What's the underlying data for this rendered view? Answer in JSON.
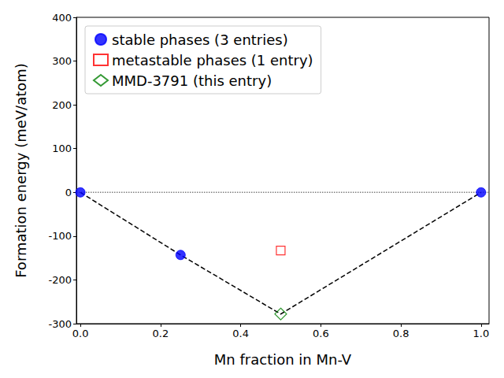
{
  "chart_data": {
    "type": "scatter",
    "x_label": "Mn fraction in Mn-V",
    "y_label": "Formation energy (meV/atom)",
    "xlim": [
      -0.01,
      1.02
    ],
    "xticks": [
      {
        "value": 0,
        "label": "0.0"
      },
      {
        "value": 0.2,
        "label": "0.2"
      },
      {
        "value": 0.4,
        "label": "0.4"
      },
      {
        "value": 0.6,
        "label": "0.6"
      },
      {
        "value": 0.8,
        "label": "0.8"
      },
      {
        "value": 1,
        "label": "1.0"
      }
    ],
    "ylim": [
      -300,
      400
    ],
    "yticks": [
      -300,
      -200,
      -100,
      0,
      100,
      200,
      300,
      400
    ],
    "grid": false,
    "legend": "upper left",
    "series": [
      {
        "type": "line",
        "color": "#808080",
        "line_style": "dotted",
        "x": [
          -0.01,
          1.02
        ],
        "values": [
          0,
          0
        ]
      },
      {
        "type": "line",
        "color": "#000000",
        "line_style": "dashed",
        "x": [
          0,
          0.25,
          0.5,
          1
        ],
        "values": [
          0,
          -143,
          -278,
          0
        ]
      },
      {
        "name": "stable phases (3 entries)",
        "type": "scatter",
        "color": "#0000ff",
        "marker": "circle",
        "x": [
          0,
          0.25,
          1
        ],
        "values": [
          0,
          -143,
          0
        ]
      },
      {
        "name": "metastable phases (1 entry)",
        "type": "scatter",
        "color": "#ff0000",
        "marker": "open_square",
        "x": [
          0.5
        ],
        "values": [
          -133
        ]
      },
      {
        "name": "MMD-3791 (this entry)",
        "type": "scatter",
        "color": "#008000",
        "marker": "open_diamond",
        "x": [
          0.5
        ],
        "values": [
          -278
        ]
      }
    ]
  }
}
